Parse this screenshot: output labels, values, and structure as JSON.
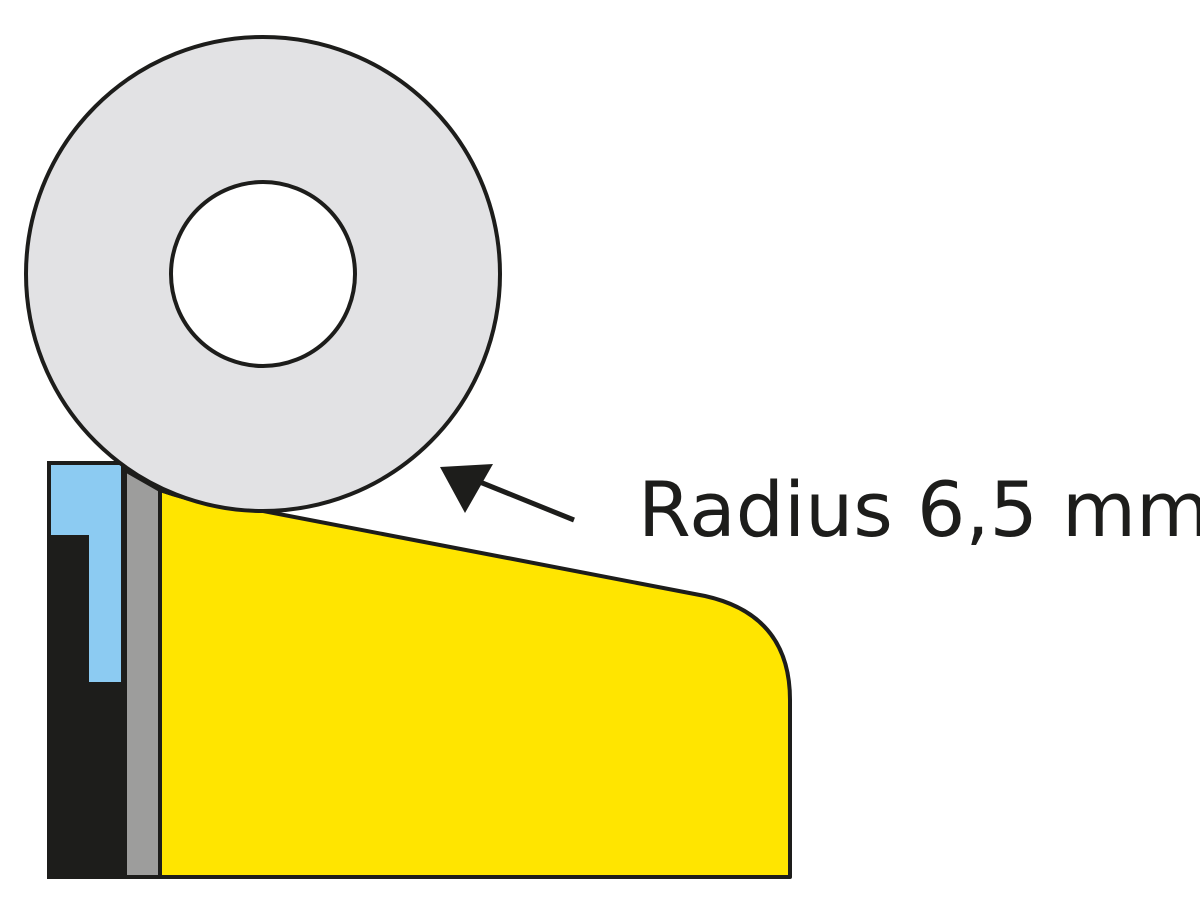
{
  "annotation": {
    "text": "Radius 6,5 mm"
  },
  "colors": {
    "outline": "#1d1d1b",
    "wheel": "#e2e2e4",
    "yellow_body": "#ffe500",
    "red_edge": "#e30613",
    "blue_part": "#8ccbf2",
    "gray_strip": "#9d9d9c",
    "black_part": "#1d1d1b"
  }
}
